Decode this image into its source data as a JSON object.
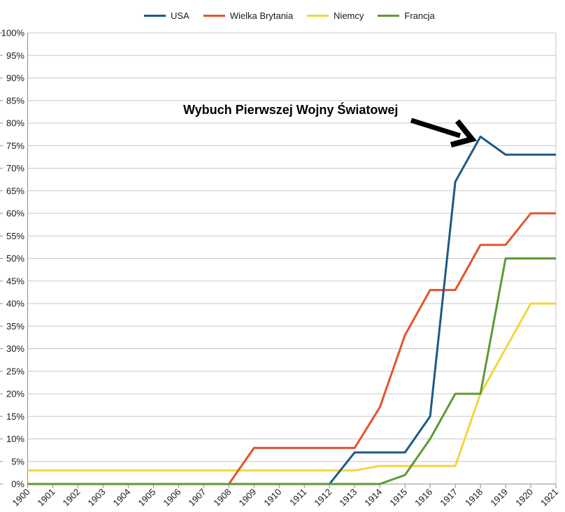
{
  "chart_data": {
    "type": "line",
    "title": "",
    "xlabel": "",
    "ylabel": "",
    "x": [
      1900,
      1901,
      1902,
      1903,
      1904,
      1905,
      1906,
      1907,
      1908,
      1909,
      1910,
      1911,
      1912,
      1913,
      1914,
      1915,
      1916,
      1917,
      1918,
      1919,
      1920,
      1921
    ],
    "series": [
      {
        "name": "USA",
        "color": "#1d5a86",
        "values": [
          0,
          0,
          0,
          0,
          0,
          0,
          0,
          0,
          0,
          0,
          0,
          0,
          0,
          7,
          7,
          7,
          15,
          67,
          77,
          73,
          73,
          73
        ]
      },
      {
        "name": "Wielka Brytania",
        "color": "#e4542a",
        "values": [
          0,
          0,
          0,
          0,
          0,
          0,
          0,
          0,
          0,
          8,
          8,
          8,
          8,
          8,
          17,
          33,
          43,
          43,
          53,
          53,
          60,
          60
        ]
      },
      {
        "name": "Niemcy",
        "color": "#f2d63d",
        "values": [
          3,
          3,
          3,
          3,
          3,
          3,
          3,
          3,
          3,
          3,
          3,
          3,
          3,
          3,
          4,
          4,
          4,
          4,
          20,
          30,
          40,
          40
        ]
      },
      {
        "name": "Francja",
        "color": "#5d9a33",
        "values": [
          0,
          0,
          0,
          0,
          0,
          0,
          0,
          0,
          0,
          0,
          0,
          0,
          0,
          0,
          0,
          2,
          10,
          20,
          20,
          50,
          50,
          50
        ]
      }
    ],
    "draw_order": [
      "Niemcy",
      "Wielka Brytania",
      "USA",
      "Francja"
    ],
    "ylim": [
      0,
      100
    ],
    "ytick_step": 5,
    "ytick_suffix": "%",
    "grid": "horizontal",
    "legend_position": "top",
    "annotation": {
      "text": "Wybuch Pierwszej Wojny Światowej",
      "target_year": 1918,
      "target_value": 77
    }
  },
  "colors": {
    "background": "#ffffff",
    "grid": "#c8c8c8",
    "axis": "#8f8f8f",
    "plot_border": "#c3c3c3",
    "label": "#1a1a1a",
    "annotation": "#000000"
  }
}
